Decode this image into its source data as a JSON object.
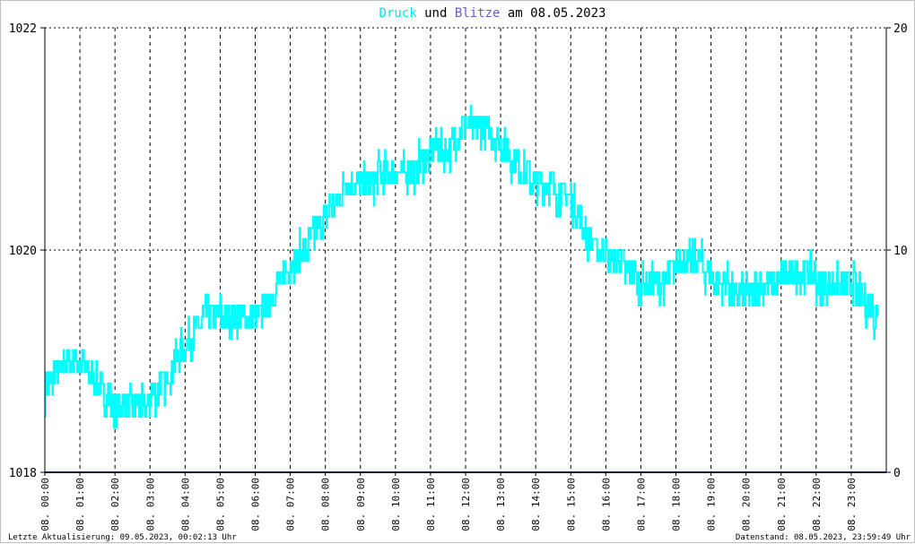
{
  "title": {
    "word1": "Druck",
    "word2": " und ",
    "word3": "Blitze",
    "word4": " am 08.05.2023",
    "color1": "#00e5ee",
    "color2": "#000000",
    "color3": "#6a5acd",
    "color4": "#000000"
  },
  "footer": {
    "left": "Letzte Aktualisierung: 09.05.2023, 00:02:13 Uhr",
    "right": "Datenstand: 08.05.2023, 23:59:49 Uhr"
  },
  "colors": {
    "pressure": "#00ffff",
    "lightning": "#1a1a80",
    "grid": "#000000",
    "axis": "#000000"
  },
  "chart_data": {
    "type": "line",
    "title": "Druck und Blitze am 08.05.2023",
    "x_range_hours": [
      0,
      24
    ],
    "x_tick_labels": [
      "08. 00:00",
      "08. 01:00",
      "08. 02:00",
      "08. 03:00",
      "08. 04:00",
      "08. 05:00",
      "08. 06:00",
      "08. 07:00",
      "08. 08:00",
      "08. 09:00",
      "08. 10:00",
      "08. 11:00",
      "08. 12:00",
      "08. 13:00",
      "08. 14:00",
      "08. 15:00",
      "08. 16:00",
      "08. 17:00",
      "08. 18:00",
      "08. 19:00",
      "08. 20:00",
      "08. 21:00",
      "08. 22:00",
      "08. 23:00"
    ],
    "y_left": {
      "min": 1018,
      "max": 1022,
      "ticks": [
        "1018",
        "1020",
        "1022"
      ]
    },
    "y_right": {
      "min": 0,
      "max": 20,
      "ticks": [
        "0",
        "10",
        "20"
      ]
    },
    "grid": true,
    "series": [
      {
        "name": "Druck",
        "axis": "left",
        "x": [
          0,
          0.5,
          1.0,
          1.5,
          2.0,
          2.5,
          3.0,
          3.5,
          4.0,
          4.5,
          5.0,
          5.5,
          6.0,
          6.5,
          7.0,
          7.5,
          8.0,
          8.5,
          9.0,
          9.5,
          10.0,
          10.5,
          11.0,
          11.5,
          12.0,
          12.5,
          13.0,
          13.5,
          14.0,
          14.5,
          15.0,
          15.5,
          16.0,
          16.5,
          17.0,
          17.5,
          18.0,
          18.5,
          19.0,
          19.5,
          20.0,
          20.5,
          21.0,
          21.5,
          22.0,
          22.5,
          23.0,
          23.5,
          23.75
        ],
        "values": [
          1018.75,
          1018.95,
          1019.0,
          1018.8,
          1018.6,
          1018.6,
          1018.65,
          1018.85,
          1019.15,
          1019.35,
          1019.45,
          1019.4,
          1019.35,
          1019.6,
          1019.85,
          1020.05,
          1020.3,
          1020.55,
          1020.6,
          1020.65,
          1020.75,
          1020.7,
          1020.85,
          1020.9,
          1021.15,
          1021.1,
          1020.95,
          1020.75,
          1020.6,
          1020.55,
          1020.45,
          1020.1,
          1019.95,
          1019.85,
          1019.7,
          1019.65,
          1019.85,
          1019.95,
          1019.75,
          1019.65,
          1019.6,
          1019.7,
          1019.75,
          1019.8,
          1019.75,
          1019.65,
          1019.7,
          1019.5,
          1019.4
        ]
      },
      {
        "name": "Blitze",
        "axis": "right",
        "x": [
          0,
          24
        ],
        "values": [
          0,
          0
        ]
      }
    ]
  }
}
